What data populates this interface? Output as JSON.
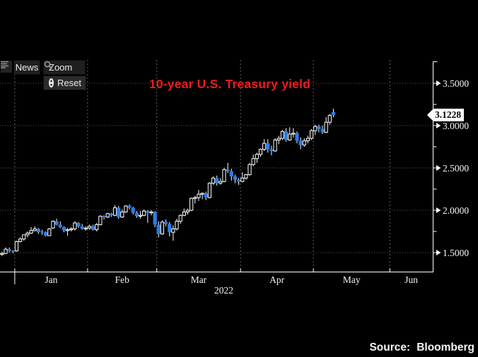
{
  "colors": {
    "background": "#000000",
    "up_candle": "#ffffff",
    "down_candle": "#2d7ce4",
    "axis": "#ffffff",
    "grid": "#616161",
    "title_red": "#ee1c1c",
    "price_tag_bg": "#ffffff",
    "price_tag_text": "#000000"
  },
  "toolbar": {
    "menu_icon": "list-icon",
    "news_label": "News",
    "zoom_label": "Zoom",
    "zoom_icon": "magnifier-icon",
    "reset_label": "Reset",
    "reset_icon": "record-circle-icon"
  },
  "source": {
    "label": "Source:",
    "value": "Bloomberg"
  },
  "chart_data": {
    "type": "candlestick",
    "title": "10-year U.S. Treasury yield",
    "grid": true,
    "legend": "none",
    "last_price": {
      "label": "3.1228",
      "value": 3.1228
    },
    "y_axis": {
      "side": "right",
      "major": [
        3.5,
        3.0,
        2.5,
        2.0,
        1.5
      ],
      "labels": [
        "3.5000",
        "3.0000",
        "2.5000",
        "2.0000",
        "1.5000"
      ],
      "minor": [
        3.25,
        2.75,
        2.25,
        1.75
      ],
      "range": [
        1.275,
        3.758
      ]
    },
    "x_axis": {
      "months": [
        "Jan",
        "Feb",
        "Mar",
        "Apr",
        "May",
        "Jun"
      ],
      "year": "2022",
      "tick_day_indices": [
        3.5,
        23.5,
        42.5,
        65.5,
        85.5,
        106.5
      ],
      "axis_end_index": 118.3
    },
    "series_name": "10-year U.S. Treasury yield",
    "ohlc_format": [
      "date",
      "open",
      "high",
      "low",
      "close"
    ],
    "series": [
      [
        "12-28",
        1.48,
        1.51,
        1.46,
        1.49
      ],
      [
        "12-29",
        1.49,
        1.56,
        1.48,
        1.54
      ],
      [
        "12-30",
        1.54,
        1.56,
        1.5,
        1.52
      ],
      [
        "12-31",
        1.52,
        1.53,
        1.49,
        1.51
      ],
      [
        "01-03",
        1.52,
        1.64,
        1.51,
        1.63
      ],
      [
        "01-04",
        1.63,
        1.68,
        1.62,
        1.66
      ],
      [
        "01-05",
        1.66,
        1.71,
        1.64,
        1.71
      ],
      [
        "01-06",
        1.71,
        1.75,
        1.68,
        1.73
      ],
      [
        "01-07",
        1.73,
        1.8,
        1.72,
        1.76
      ],
      [
        "01-10",
        1.76,
        1.81,
        1.75,
        1.78
      ],
      [
        "01-11",
        1.78,
        1.79,
        1.72,
        1.74
      ],
      [
        "01-12",
        1.75,
        1.77,
        1.71,
        1.74
      ],
      [
        "01-13",
        1.74,
        1.75,
        1.69,
        1.7
      ],
      [
        "01-14",
        1.7,
        1.79,
        1.7,
        1.78
      ],
      [
        "01-18",
        1.79,
        1.88,
        1.78,
        1.87
      ],
      [
        "01-19",
        1.87,
        1.9,
        1.82,
        1.83
      ],
      [
        "01-20",
        1.83,
        1.87,
        1.79,
        1.8
      ],
      [
        "01-21",
        1.8,
        1.81,
        1.74,
        1.76
      ],
      [
        "01-24",
        1.76,
        1.79,
        1.7,
        1.77
      ],
      [
        "01-25",
        1.77,
        1.8,
        1.75,
        1.78
      ],
      [
        "01-26",
        1.78,
        1.87,
        1.76,
        1.85
      ],
      [
        "01-27",
        1.85,
        1.86,
        1.79,
        1.81
      ],
      [
        "01-28",
        1.81,
        1.84,
        1.77,
        1.78
      ],
      [
        "01-31",
        1.78,
        1.81,
        1.76,
        1.79
      ],
      [
        "02-01",
        1.79,
        1.83,
        1.77,
        1.81
      ],
      [
        "02-02",
        1.81,
        1.83,
        1.76,
        1.77
      ],
      [
        "02-03",
        1.77,
        1.85,
        1.75,
        1.83
      ],
      [
        "02-04",
        1.83,
        1.94,
        1.82,
        1.93
      ],
      [
        "02-07",
        1.93,
        1.94,
        1.89,
        1.92
      ],
      [
        "02-08",
        1.92,
        1.97,
        1.91,
        1.96
      ],
      [
        "02-09",
        1.96,
        1.97,
        1.92,
        1.94
      ],
      [
        "02-10",
        1.94,
        2.06,
        1.93,
        2.03
      ],
      [
        "02-11",
        2.03,
        2.05,
        1.9,
        1.92
      ],
      [
        "02-14",
        1.92,
        2.01,
        1.91,
        1.98
      ],
      [
        "02-15",
        1.98,
        2.06,
        1.97,
        2.05
      ],
      [
        "02-16",
        2.05,
        2.07,
        2.01,
        2.03
      ],
      [
        "02-17",
        2.03,
        2.04,
        1.95,
        1.97
      ],
      [
        "02-18",
        1.97,
        1.99,
        1.91,
        1.93
      ],
      [
        "02-22",
        1.93,
        1.99,
        1.9,
        1.94
      ],
      [
        "02-23",
        1.94,
        2.01,
        1.93,
        1.99
      ],
      [
        "02-24",
        1.99,
        2.0,
        1.85,
        1.97
      ],
      [
        "02-25",
        1.97,
        2.0,
        1.94,
        1.98
      ],
      [
        "02-28",
        1.98,
        1.99,
        1.8,
        1.83
      ],
      [
        "03-01",
        1.83,
        1.87,
        1.68,
        1.72
      ],
      [
        "03-02",
        1.72,
        1.88,
        1.71,
        1.86
      ],
      [
        "03-03",
        1.86,
        1.89,
        1.81,
        1.84
      ],
      [
        "03-04",
        1.84,
        1.86,
        1.69,
        1.74
      ],
      [
        "03-07",
        1.74,
        1.82,
        1.64,
        1.78
      ],
      [
        "03-08",
        1.78,
        1.9,
        1.76,
        1.87
      ],
      [
        "03-09",
        1.87,
        1.95,
        1.84,
        1.94
      ],
      [
        "03-10",
        1.94,
        2.02,
        1.93,
        1.98
      ],
      [
        "03-11",
        1.98,
        2.02,
        1.95,
        2.0
      ],
      [
        "03-14",
        2.0,
        2.15,
        1.99,
        2.14
      ],
      [
        "03-15",
        2.14,
        2.17,
        2.08,
        2.15
      ],
      [
        "03-16",
        2.15,
        2.24,
        2.11,
        2.19
      ],
      [
        "03-17",
        2.19,
        2.21,
        2.13,
        2.2
      ],
      [
        "03-18",
        2.2,
        2.22,
        2.12,
        2.15
      ],
      [
        "03-21",
        2.15,
        2.33,
        2.14,
        2.32
      ],
      [
        "03-22",
        2.32,
        2.4,
        2.3,
        2.38
      ],
      [
        "03-23",
        2.38,
        2.41,
        2.29,
        2.32
      ],
      [
        "03-24",
        2.32,
        2.38,
        2.3,
        2.34
      ],
      [
        "03-25",
        2.34,
        2.5,
        2.33,
        2.48
      ],
      [
        "03-28",
        2.48,
        2.56,
        2.44,
        2.46
      ],
      [
        "03-29",
        2.46,
        2.49,
        2.35,
        2.4
      ],
      [
        "03-30",
        2.4,
        2.42,
        2.32,
        2.36
      ],
      [
        "03-31",
        2.36,
        2.38,
        2.3,
        2.34
      ],
      [
        "04-01",
        2.34,
        2.45,
        2.33,
        2.38
      ],
      [
        "04-04",
        2.38,
        2.43,
        2.36,
        2.42
      ],
      [
        "04-05",
        2.42,
        2.56,
        2.41,
        2.54
      ],
      [
        "04-06",
        2.54,
        2.66,
        2.52,
        2.61
      ],
      [
        "04-07",
        2.61,
        2.68,
        2.56,
        2.66
      ],
      [
        "04-08",
        2.66,
        2.73,
        2.63,
        2.72
      ],
      [
        "04-11",
        2.72,
        2.84,
        2.7,
        2.79
      ],
      [
        "04-12",
        2.79,
        2.84,
        2.68,
        2.72
      ],
      [
        "04-13",
        2.72,
        2.76,
        2.65,
        2.7
      ],
      [
        "04-14",
        2.7,
        2.85,
        2.69,
        2.83
      ],
      [
        "04-18",
        2.83,
        2.88,
        2.78,
        2.85
      ],
      [
        "04-19",
        2.85,
        2.95,
        2.83,
        2.93
      ],
      [
        "04-20",
        2.93,
        2.97,
        2.81,
        2.83
      ],
      [
        "04-21",
        2.83,
        2.98,
        2.82,
        2.9
      ],
      [
        "04-22",
        2.9,
        2.97,
        2.86,
        2.91
      ],
      [
        "04-25",
        2.91,
        2.93,
        2.79,
        2.82
      ],
      [
        "04-26",
        2.82,
        2.86,
        2.72,
        2.77
      ],
      [
        "04-27",
        2.77,
        2.85,
        2.75,
        2.82
      ],
      [
        "04-28",
        2.82,
        2.88,
        2.79,
        2.85
      ],
      [
        "04-29",
        2.85,
        2.96,
        2.83,
        2.94
      ],
      [
        "05-02",
        2.94,
        3.01,
        2.89,
        2.99
      ],
      [
        "05-03",
        2.99,
        3.01,
        2.92,
        2.96
      ],
      [
        "05-04",
        2.96,
        3.0,
        2.9,
        2.92
      ],
      [
        "05-05",
        2.92,
        3.1,
        2.91,
        3.04
      ],
      [
        "05-06",
        3.04,
        3.14,
        3.01,
        3.12
      ],
      [
        "05-09",
        3.16,
        3.2,
        3.1,
        3.1228
      ]
    ]
  }
}
